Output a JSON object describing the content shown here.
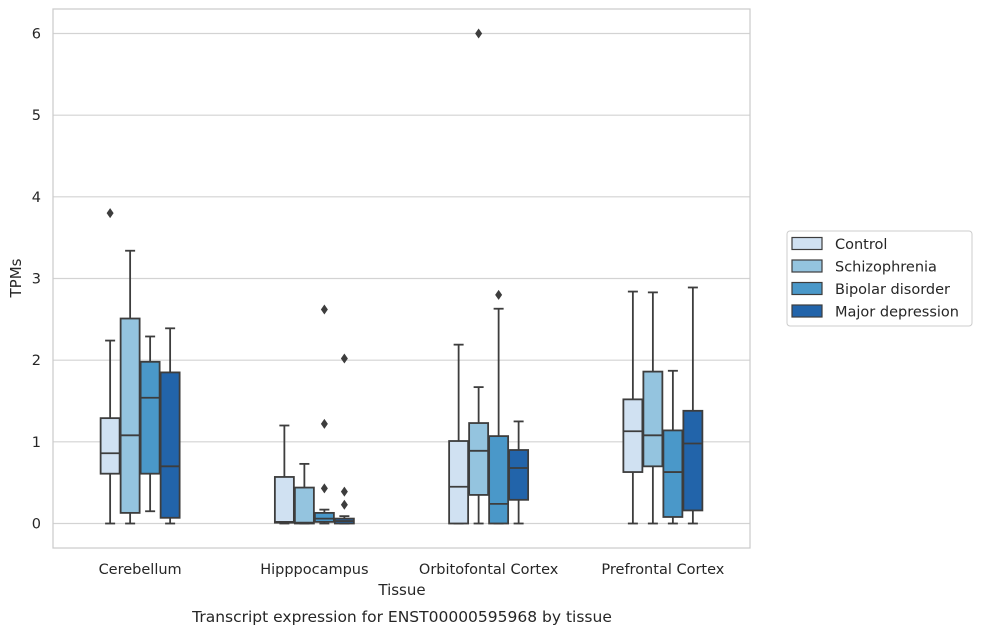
{
  "chart_data": {
    "type": "box",
    "title": "Transcript expression for ENST00000595968 by tissue",
    "xlabel": "Tissue",
    "ylabel": "TPMs",
    "ylim": [
      -0.3,
      6.3
    ],
    "yticks": [
      0,
      1,
      2,
      3,
      4,
      5,
      6
    ],
    "grid": true,
    "legend_position": "right",
    "categories": [
      "Cerebellum",
      "Hipppocampus",
      "Orbitofontal Cortex",
      "Prefrontal Cortex"
    ],
    "series": [
      {
        "name": "Control",
        "color": "#d0e1f2",
        "boxes": [
          {
            "whisker_low": 0.0,
            "q1": 0.61,
            "median": 0.86,
            "q3": 1.29,
            "whisker_high": 2.24,
            "outliers": [
              3.8
            ]
          },
          {
            "whisker_low": 0.0,
            "q1": 0.01,
            "median": 0.02,
            "q3": 0.57,
            "whisker_high": 1.2,
            "outliers": []
          },
          {
            "whisker_low": 0.0,
            "q1": 0.0,
            "median": 0.45,
            "q3": 1.01,
            "whisker_high": 2.19,
            "outliers": []
          },
          {
            "whisker_low": 0.0,
            "q1": 0.63,
            "median": 1.13,
            "q3": 1.52,
            "whisker_high": 2.84,
            "outliers": []
          }
        ]
      },
      {
        "name": "Schizophrenia",
        "color": "#94c4df",
        "boxes": [
          {
            "whisker_low": 0.0,
            "q1": 0.13,
            "median": 1.08,
            "q3": 2.51,
            "whisker_high": 3.34,
            "outliers": []
          },
          {
            "whisker_low": 0.0,
            "q1": 0.0,
            "median": 0.01,
            "q3": 0.44,
            "whisker_high": 0.73,
            "outliers": []
          },
          {
            "whisker_low": 0.0,
            "q1": 0.35,
            "median": 0.89,
            "q3": 1.23,
            "whisker_high": 1.67,
            "outliers": [
              6.0
            ]
          },
          {
            "whisker_low": 0.0,
            "q1": 0.7,
            "median": 1.08,
            "q3": 1.86,
            "whisker_high": 2.83,
            "outliers": []
          }
        ]
      },
      {
        "name": "Bipolar disorder",
        "color": "#4a98c9",
        "boxes": [
          {
            "whisker_low": 0.15,
            "q1": 0.61,
            "median": 1.54,
            "q3": 1.98,
            "whisker_high": 2.29,
            "outliers": []
          },
          {
            "whisker_low": 0.0,
            "q1": 0.02,
            "median": 0.06,
            "q3": 0.13,
            "whisker_high": 0.17,
            "outliers": [
              0.43,
              1.22,
              2.62
            ]
          },
          {
            "whisker_low": 0.0,
            "q1": 0.0,
            "median": 0.24,
            "q3": 1.07,
            "whisker_high": 2.63,
            "outliers": [
              2.8
            ]
          },
          {
            "whisker_low": 0.0,
            "q1": 0.08,
            "median": 0.63,
            "q3": 1.14,
            "whisker_high": 1.87,
            "outliers": []
          }
        ]
      },
      {
        "name": "Major depression",
        "color": "#2264aa",
        "boxes": [
          {
            "whisker_low": 0.0,
            "q1": 0.07,
            "median": 0.7,
            "q3": 1.85,
            "whisker_high": 2.39,
            "outliers": []
          },
          {
            "whisker_low": 0.0,
            "q1": 0.0,
            "median": 0.03,
            "q3": 0.06,
            "whisker_high": 0.09,
            "outliers": [
              0.23,
              0.39,
              2.02
            ]
          },
          {
            "whisker_low": 0.0,
            "q1": 0.29,
            "median": 0.68,
            "q3": 0.9,
            "whisker_high": 1.25,
            "outliers": []
          },
          {
            "whisker_low": 0.0,
            "q1": 0.16,
            "median": 0.98,
            "q3": 1.38,
            "whisker_high": 2.89,
            "outliers": []
          }
        ]
      }
    ]
  }
}
